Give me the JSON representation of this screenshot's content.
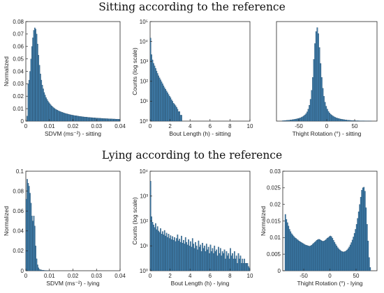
{
  "figure": {
    "sections": [
      {
        "title": "Sitting according to the reference"
      },
      {
        "title": "Lying according to the reference"
      }
    ]
  },
  "chart_data": [
    {
      "type": "bar",
      "panel": "sdvm-sitting",
      "xlabel": "SDVM (ms⁻²) - sitting",
      "ylabel": "Normalized",
      "xlim": [
        0,
        0.04
      ],
      "ylim": [
        0,
        0.08
      ],
      "xticks": [
        "0",
        "0.01",
        "0.02",
        "0.03",
        "0.04"
      ],
      "xtick_values": [
        0,
        0.01,
        0.02,
        0.03,
        0.04
      ],
      "yticks": [
        "0",
        "0.01",
        "0.02",
        "0.03",
        "0.04",
        "0.05",
        "0.06",
        "0.07",
        "0.08"
      ],
      "ytick_values": [
        0,
        0.01,
        0.02,
        0.03,
        0.04,
        0.05,
        0.06,
        0.07,
        0.08
      ],
      "yscale": "linear",
      "bin_width": 0.0004,
      "bins_start": 0,
      "values": [
        0.0,
        0.004,
        0.03,
        0.033,
        0.04,
        0.05,
        0.06,
        0.067,
        0.073,
        0.075,
        0.074,
        0.07,
        0.062,
        0.053,
        0.045,
        0.038,
        0.033,
        0.029,
        0.026,
        0.023,
        0.021,
        0.019,
        0.0175,
        0.0162,
        0.015,
        0.014,
        0.013,
        0.0122,
        0.0115,
        0.0108,
        0.0102,
        0.0097,
        0.0092,
        0.0088,
        0.0084,
        0.008,
        0.0077,
        0.0074,
        0.0071,
        0.0068,
        0.0066,
        0.0063,
        0.0061,
        0.0059,
        0.0057,
        0.0055,
        0.0053,
        0.0051,
        0.005,
        0.0048,
        0.0047,
        0.0045,
        0.0044,
        0.0043,
        0.0042,
        0.004,
        0.0039,
        0.0038,
        0.0037,
        0.0036,
        0.0035,
        0.0034,
        0.0033,
        0.0033,
        0.0032,
        0.0031,
        0.003,
        0.003,
        0.0029,
        0.0028,
        0.0028,
        0.0027,
        0.0026,
        0.0026,
        0.0025,
        0.0025,
        0.0024,
        0.0024,
        0.0023,
        0.0023,
        0.0022,
        0.0022,
        0.0021,
        0.0021,
        0.002,
        0.002,
        0.002,
        0.0019,
        0.0019,
        0.0018,
        0.0018,
        0.0018,
        0.0017,
        0.0017,
        0.0017,
        0.0016,
        0.0016,
        0.0016,
        0.0015,
        0.0015
      ]
    },
    {
      "type": "bar",
      "panel": "bout-sitting",
      "xlabel": "Bout Length (h) - sitting",
      "ylabel": "Counts (log scale)",
      "xlim": [
        0,
        10
      ],
      "ylim": [
        1,
        100000
      ],
      "xticks": [
        "0",
        "2",
        "4",
        "6",
        "8",
        "10"
      ],
      "xtick_values": [
        0,
        2,
        4,
        6,
        8,
        10
      ],
      "yticks": [
        "10⁰",
        "10¹",
        "10²",
        "10³",
        "10⁴",
        "10⁵"
      ],
      "ytick_values": [
        1,
        10,
        100,
        1000,
        10000,
        100000
      ],
      "yscale": "log",
      "bin_width": 0.1,
      "bins_start": 0,
      "values": [
        15000,
        2200,
        1200,
        800,
        600,
        450,
        330,
        250,
        190,
        150,
        120,
        95,
        75,
        60,
        48,
        40,
        33,
        27,
        22,
        18,
        15,
        12,
        10,
        8,
        7,
        6,
        5,
        4,
        3,
        3,
        2,
        2
      ]
    },
    {
      "type": "bar",
      "panel": "thigh-sitting",
      "xlabel": "Thight Rotation (°) - sitting",
      "ylabel": "",
      "xlim": [
        -90,
        90
      ],
      "ylim": [
        0,
        0.1
      ],
      "xticks": [
        "-50",
        "0",
        "50"
      ],
      "xtick_values": [
        -50,
        0,
        50
      ],
      "yticks": [],
      "ytick_values": [],
      "yscale": "linear",
      "bin_width": 2,
      "bins_start": -80,
      "values": [
        0.0004,
        0.0005,
        0.0006,
        0.0007,
        0.0008,
        0.0009,
        0.001,
        0.0012,
        0.0013,
        0.0015,
        0.0017,
        0.0019,
        0.0021,
        0.0024,
        0.0027,
        0.003,
        0.0034,
        0.0039,
        0.0045,
        0.0053,
        0.0063,
        0.0076,
        0.0094,
        0.012,
        0.016,
        0.022,
        0.031,
        0.044,
        0.062,
        0.078,
        0.09,
        0.094,
        0.088,
        0.074,
        0.058,
        0.044,
        0.033,
        0.025,
        0.019,
        0.015,
        0.012,
        0.0098,
        0.0082,
        0.007,
        0.006,
        0.0052,
        0.0045,
        0.0039,
        0.0034,
        0.003,
        0.0027,
        0.0024,
        0.0021,
        0.0019,
        0.0017,
        0.0015,
        0.0013,
        0.0012,
        0.001,
        0.0009,
        0.0008,
        0.0007,
        0.0006,
        0.0006,
        0.0005,
        0.0005,
        0.0004,
        0.0004,
        0.0004,
        0.0003,
        0.0003,
        0.0003,
        0.0003,
        0.0003,
        0.0002,
        0.0002,
        0.0002,
        0.0002,
        0.0002,
        0.0002
      ]
    },
    {
      "type": "bar",
      "panel": "sdvm-lying",
      "xlabel": "SDVM (ms⁻²) - lying",
      "ylabel": "Normalized",
      "xlim": [
        0,
        0.04
      ],
      "ylim": [
        0,
        0.1
      ],
      "xticks": [
        "0",
        "0.01",
        "0.02",
        "0.03",
        "0.04"
      ],
      "xtick_values": [
        0,
        0.01,
        0.02,
        0.03,
        0.04
      ],
      "yticks": [
        "0",
        "0.02",
        "0.04",
        "0.06",
        "0.08",
        "0.1"
      ],
      "ytick_values": [
        0,
        0.02,
        0.04,
        0.06,
        0.08,
        0.1
      ],
      "yscale": "linear",
      "bin_width": 0.0004,
      "bins_start": 0,
      "values": [
        0.072,
        0.092,
        0.088,
        0.085,
        0.078,
        0.068,
        0.055,
        0.05,
        0.055,
        0.045,
        0.025,
        0.012,
        0.006,
        0.003,
        0.0015,
        0.001,
        0.0008,
        0.0006,
        0.0005,
        0.0004,
        0.0003,
        0.0003,
        0.0002,
        0.0002,
        0.0002,
        0.0001,
        0.0001,
        0.0001,
        0.0001,
        0.0001
      ]
    },
    {
      "type": "bar",
      "panel": "bout-lying",
      "xlabel": "Bout Length (h) - lying",
      "ylabel": "Counts (log scale)",
      "xlim": [
        0,
        10
      ],
      "ylim": [
        1,
        10000
      ],
      "xticks": [
        "0",
        "2",
        "4",
        "6",
        "8",
        "10"
      ],
      "xtick_values": [
        0,
        2,
        4,
        6,
        8,
        10
      ],
      "yticks": [
        "10⁰",
        "10¹",
        "10²",
        "10³",
        "10⁴"
      ],
      "ytick_values": [
        1,
        10,
        100,
        1000,
        10000
      ],
      "yscale": "log",
      "bin_width": 0.1,
      "bins_start": 0,
      "values": [
        4000,
        150,
        90,
        70,
        55,
        80,
        45,
        60,
        40,
        35,
        50,
        30,
        38,
        28,
        42,
        25,
        33,
        22,
        30,
        20,
        26,
        18,
        24,
        17,
        22,
        15,
        20,
        28,
        16,
        19,
        14,
        25,
        13,
        17,
        12,
        22,
        14,
        11,
        18,
        10,
        15,
        9,
        20,
        12,
        8,
        14,
        10,
        7,
        16,
        9,
        11,
        6,
        13,
        8,
        10,
        6,
        12,
        7,
        9,
        5,
        11,
        6,
        8,
        5,
        10,
        6,
        7,
        4,
        9,
        5,
        8,
        4,
        6,
        5,
        7,
        3,
        6,
        4,
        5,
        3,
        8,
        4,
        5,
        3,
        6,
        3,
        4,
        2,
        5,
        3,
        4,
        2,
        3,
        2,
        3,
        2,
        2,
        2,
        1.5,
        1.3
      ]
    },
    {
      "type": "bar",
      "panel": "thigh-lying",
      "xlabel": "Thight Rotation (°) - lying",
      "ylabel": "Normalized",
      "xlim": [
        -90,
        90
      ],
      "ylim": [
        0,
        0.03
      ],
      "xticks": [
        "-50",
        "0",
        "50"
      ],
      "xtick_values": [
        -50,
        0,
        50
      ],
      "yticks": [
        "0",
        "0.005",
        "0.01",
        "0.015",
        "0.02",
        "0.025",
        "0.03"
      ],
      "ytick_values": [
        0,
        0.005,
        0.01,
        0.015,
        0.02,
        0.025,
        0.03
      ],
      "yscale": "linear",
      "bin_width": 2,
      "bins_start": -86,
      "values": [
        0.017,
        0.0155,
        0.0145,
        0.0135,
        0.0125,
        0.0118,
        0.0112,
        0.0108,
        0.0104,
        0.01,
        0.0098,
        0.0095,
        0.0093,
        0.009,
        0.0088,
        0.0086,
        0.0084,
        0.0082,
        0.008,
        0.0078,
        0.0077,
        0.0076,
        0.0075,
        0.0074,
        0.0075,
        0.0077,
        0.008,
        0.0083,
        0.0086,
        0.0089,
        0.0092,
        0.0094,
        0.0095,
        0.0094,
        0.0092,
        0.009,
        0.0089,
        0.009,
        0.0092,
        0.0095,
        0.0098,
        0.01,
        0.0103,
        0.0105,
        0.0103,
        0.0098,
        0.0092,
        0.0086,
        0.008,
        0.0075,
        0.007,
        0.0066,
        0.0063,
        0.006,
        0.0058,
        0.0057,
        0.0057,
        0.0058,
        0.006,
        0.0063,
        0.0067,
        0.0072,
        0.0078,
        0.0085,
        0.0093,
        0.0102,
        0.0113,
        0.0125,
        0.014,
        0.0158,
        0.0178,
        0.02,
        0.0222,
        0.0243,
        0.025,
        0.0252,
        0.024,
        0.019,
        0.014,
        0.009,
        0.004,
        0.001
      ]
    }
  ]
}
